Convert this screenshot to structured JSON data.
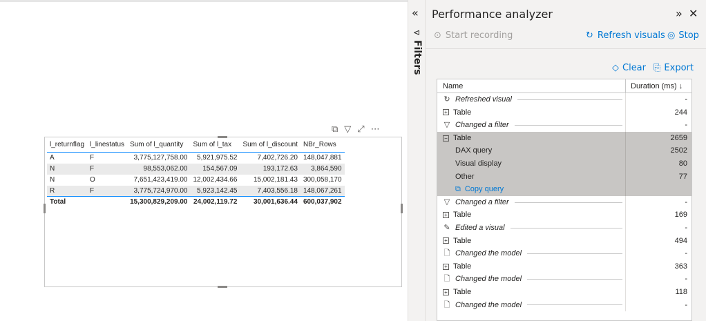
{
  "visual": {
    "columns": [
      "l_returnflag",
      "l_linestatus",
      "Sum of l_quantity",
      "Sum of l_tax",
      "Sum of l_discount",
      "NBr_Rows"
    ],
    "rows": [
      [
        "A",
        "F",
        "3,775,127,758.00",
        "5,921,975.52",
        "7,402,726.20",
        "148,047,881"
      ],
      [
        "N",
        "F",
        "98,553,062.00",
        "154,567.09",
        "193,172.63",
        "3,864,590"
      ],
      [
        "N",
        "O",
        "7,651,423,419.00",
        "12,002,434.66",
        "15,002,181.43",
        "300,058,170"
      ],
      [
        "R",
        "F",
        "3,775,724,970.00",
        "5,923,142.45",
        "7,403,556.18",
        "148,067,261"
      ]
    ],
    "total": [
      "Total",
      "",
      "15,300,829,209.00",
      "24,002,119.72",
      "30,001,636.44",
      "600,037,902"
    ],
    "header_icons": [
      "focus-mode-icon",
      "filter-icon",
      "expand-icon",
      "more-options-icon"
    ]
  },
  "rail": {
    "filters_label": "Filters"
  },
  "pane": {
    "title": "Performance analyzer",
    "start_recording": "Start recording",
    "refresh_visuals": "Refresh visuals",
    "stop": "Stop",
    "clear": "Clear",
    "export": "Export",
    "col_name": "Name",
    "col_duration": "Duration (ms)",
    "events": [
      {
        "kind": "event",
        "icon": "refresh",
        "name": "Refreshed visual",
        "duration": "-"
      },
      {
        "kind": "item",
        "name": "Table",
        "duration": "244"
      },
      {
        "kind": "event",
        "icon": "filter",
        "name": "Changed a filter",
        "duration": "-"
      },
      {
        "kind": "item-expanded",
        "name": "Table",
        "duration": "2659"
      },
      {
        "kind": "sub",
        "name": "DAX query",
        "duration": "2502"
      },
      {
        "kind": "sub",
        "name": "Visual display",
        "duration": "80"
      },
      {
        "kind": "sub",
        "name": "Other",
        "duration": "77"
      },
      {
        "kind": "copy",
        "name": "Copy query",
        "duration": ""
      },
      {
        "kind": "event",
        "icon": "filter",
        "name": "Changed a filter",
        "duration": "-"
      },
      {
        "kind": "item",
        "name": "Table",
        "duration": "169"
      },
      {
        "kind": "event",
        "icon": "edit",
        "name": "Edited a visual",
        "duration": "-"
      },
      {
        "kind": "item",
        "name": "Table",
        "duration": "494"
      },
      {
        "kind": "event",
        "icon": "model",
        "name": "Changed the model",
        "duration": "-"
      },
      {
        "kind": "item",
        "name": "Table",
        "duration": "363"
      },
      {
        "kind": "event",
        "icon": "model",
        "name": "Changed the model",
        "duration": "-"
      },
      {
        "kind": "item",
        "name": "Table",
        "duration": "118"
      },
      {
        "kind": "event",
        "icon": "model",
        "name": "Changed the model",
        "duration": "-"
      }
    ]
  }
}
